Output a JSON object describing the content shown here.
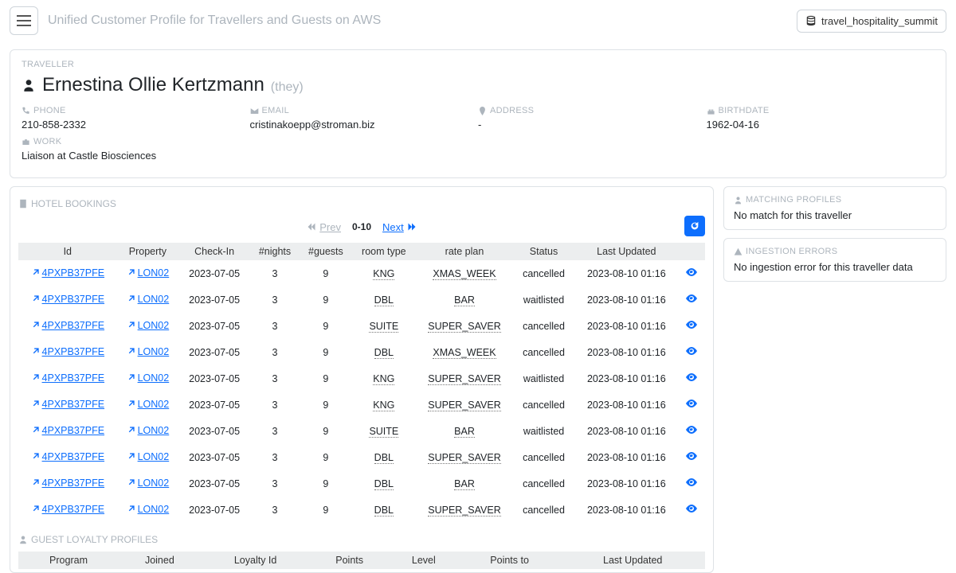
{
  "header": {
    "app_title": "Unified Customer Profile for Travellers and Guests on AWS",
    "domain": "travel_hospitality_summit"
  },
  "traveller": {
    "section_label": "TRAVELLER",
    "name": "Ernestina Ollie Kertzmann",
    "pronoun": "(they)",
    "phone_label": "PHONE",
    "phone": "210-858-2332",
    "email_label": "EMAIL",
    "email": "cristinakoepp@stroman.biz",
    "address_label": "ADDRESS",
    "address": "-",
    "birthdate_label": "BIRTHDATE",
    "birthdate": "1962-04-16",
    "work_label": "WORK",
    "work": "Liaison at Castle Biosciences"
  },
  "bookings": {
    "title": "HOTEL BOOKINGS",
    "prev_label": "Prev",
    "next_label": "Next",
    "range": "0-10",
    "columns": [
      "Id",
      "Property",
      "Check-In",
      "#nights",
      "#guests",
      "room type",
      "rate plan",
      "Status",
      "Last Updated"
    ],
    "rows": [
      {
        "id": "4PXPB37PFE",
        "property": "LON02",
        "checkin": "2023-07-05",
        "nights": "3",
        "guests": "9",
        "room": "KNG",
        "plan": "XMAS_WEEK",
        "status": "cancelled",
        "updated": "2023-08-10 01:16"
      },
      {
        "id": "4PXPB37PFE",
        "property": "LON02",
        "checkin": "2023-07-05",
        "nights": "3",
        "guests": "9",
        "room": "DBL",
        "plan": "BAR",
        "status": "waitlisted",
        "updated": "2023-08-10 01:16"
      },
      {
        "id": "4PXPB37PFE",
        "property": "LON02",
        "checkin": "2023-07-05",
        "nights": "3",
        "guests": "9",
        "room": "SUITE",
        "plan": "SUPER_SAVER",
        "status": "cancelled",
        "updated": "2023-08-10 01:16"
      },
      {
        "id": "4PXPB37PFE",
        "property": "LON02",
        "checkin": "2023-07-05",
        "nights": "3",
        "guests": "9",
        "room": "DBL",
        "plan": "XMAS_WEEK",
        "status": "cancelled",
        "updated": "2023-08-10 01:16"
      },
      {
        "id": "4PXPB37PFE",
        "property": "LON02",
        "checkin": "2023-07-05",
        "nights": "3",
        "guests": "9",
        "room": "KNG",
        "plan": "SUPER_SAVER",
        "status": "waitlisted",
        "updated": "2023-08-10 01:16"
      },
      {
        "id": "4PXPB37PFE",
        "property": "LON02",
        "checkin": "2023-07-05",
        "nights": "3",
        "guests": "9",
        "room": "KNG",
        "plan": "SUPER_SAVER",
        "status": "cancelled",
        "updated": "2023-08-10 01:16"
      },
      {
        "id": "4PXPB37PFE",
        "property": "LON02",
        "checkin": "2023-07-05",
        "nights": "3",
        "guests": "9",
        "room": "SUITE",
        "plan": "BAR",
        "status": "waitlisted",
        "updated": "2023-08-10 01:16"
      },
      {
        "id": "4PXPB37PFE",
        "property": "LON02",
        "checkin": "2023-07-05",
        "nights": "3",
        "guests": "9",
        "room": "DBL",
        "plan": "SUPER_SAVER",
        "status": "cancelled",
        "updated": "2023-08-10 01:16"
      },
      {
        "id": "4PXPB37PFE",
        "property": "LON02",
        "checkin": "2023-07-05",
        "nights": "3",
        "guests": "9",
        "room": "DBL",
        "plan": "BAR",
        "status": "cancelled",
        "updated": "2023-08-10 01:16"
      },
      {
        "id": "4PXPB37PFE",
        "property": "LON02",
        "checkin": "2023-07-05",
        "nights": "3",
        "guests": "9",
        "room": "DBL",
        "plan": "SUPER_SAVER",
        "status": "cancelled",
        "updated": "2023-08-10 01:16"
      }
    ]
  },
  "loyalty": {
    "title": "GUEST LOYALTY PROFILES",
    "columns": [
      "Program",
      "Joined",
      "Loyalty Id",
      "Points",
      "Level",
      "Points to",
      "Last Updated"
    ]
  },
  "matching": {
    "title": "MATCHING PROFILES",
    "msg": "No match for this traveller"
  },
  "ingestion": {
    "title": "INGESTION ERRORS",
    "msg": "No ingestion error for this traveller data"
  },
  "colors": {
    "link": "#0d6efd",
    "muted": "#adb5bd",
    "border": "#dee2e6"
  }
}
